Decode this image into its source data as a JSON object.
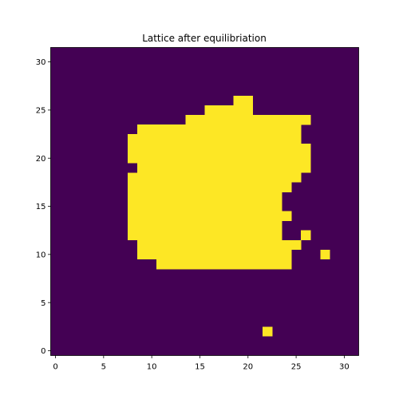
{
  "chart_data": {
    "type": "heatmap",
    "title": "Lattice after equilibriation",
    "xlabel": "",
    "ylabel": "",
    "xlim": [
      -0.5,
      31.5
    ],
    "ylim": [
      -0.5,
      31.5
    ],
    "origin": "lower",
    "xticks": [
      0,
      5,
      10,
      15,
      20,
      25,
      30
    ],
    "yticks": [
      0,
      5,
      10,
      15,
      20,
      25,
      30
    ],
    "xtick_labels": [
      "0",
      "5",
      "10",
      "15",
      "20",
      "25",
      "30"
    ],
    "ytick_labels": [
      "0",
      "5",
      "10",
      "15",
      "20",
      "25",
      "30"
    ],
    "grid": false,
    "colormap": "viridis",
    "values_legend": {
      "low": 0,
      "high": 1
    },
    "colors": {
      "low": "#440154",
      "high": "#fde725"
    },
    "grid_size": [
      32,
      32
    ],
    "high_cells_by_row": [
      {
        "y": 2,
        "x_ranges": [
          [
            22,
            22
          ]
        ]
      },
      {
        "y": 9,
        "x_ranges": [
          [
            11,
            24
          ]
        ]
      },
      {
        "y": 10,
        "x_ranges": [
          [
            9,
            24
          ],
          [
            28,
            28
          ]
        ]
      },
      {
        "y": 11,
        "x_ranges": [
          [
            9,
            25
          ]
        ]
      },
      {
        "y": 12,
        "x_ranges": [
          [
            8,
            23
          ],
          [
            26,
            26
          ]
        ]
      },
      {
        "y": 13,
        "x_ranges": [
          [
            8,
            23
          ]
        ]
      },
      {
        "y": 14,
        "x_ranges": [
          [
            8,
            24
          ]
        ]
      },
      {
        "y": 15,
        "x_ranges": [
          [
            8,
            23
          ]
        ]
      },
      {
        "y": 16,
        "x_ranges": [
          [
            8,
            23
          ]
        ]
      },
      {
        "y": 17,
        "x_ranges": [
          [
            8,
            24
          ]
        ]
      },
      {
        "y": 18,
        "x_ranges": [
          [
            8,
            25
          ]
        ]
      },
      {
        "y": 19,
        "x_ranges": [
          [
            9,
            26
          ]
        ]
      },
      {
        "y": 20,
        "x_ranges": [
          [
            8,
            26
          ]
        ]
      },
      {
        "y": 21,
        "x_ranges": [
          [
            8,
            26
          ]
        ]
      },
      {
        "y": 22,
        "x_ranges": [
          [
            8,
            25
          ]
        ]
      },
      {
        "y": 23,
        "x_ranges": [
          [
            9,
            25
          ]
        ]
      },
      {
        "y": 24,
        "x_ranges": [
          [
            14,
            26
          ]
        ]
      },
      {
        "y": 25,
        "x_ranges": [
          [
            16,
            20
          ]
        ]
      },
      {
        "y": 26,
        "x_ranges": [
          [
            19,
            20
          ]
        ]
      }
    ]
  }
}
